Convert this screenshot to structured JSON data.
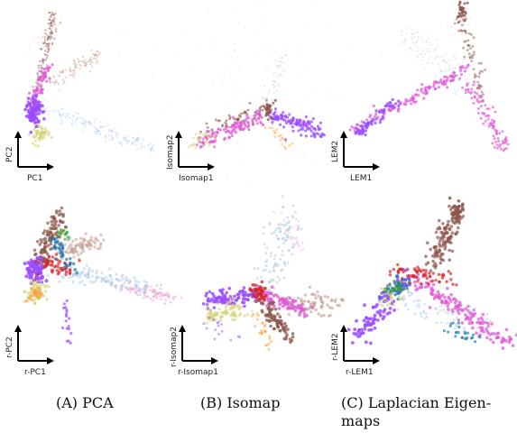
{
  "panels": [
    {
      "id": "pca",
      "x_label": "PC1",
      "y_label": "PC2"
    },
    {
      "id": "isomap",
      "x_label": "Isomap1",
      "y_label": "Isomap2"
    },
    {
      "id": "lem",
      "x_label": "LEM1",
      "y_label": "LEM2"
    },
    {
      "id": "r-pca",
      "x_label": "r-PC1",
      "y_label": "r-PC2"
    },
    {
      "id": "r-isomap",
      "x_label": "r-Isomap1",
      "y_label": "r-Isomap2"
    },
    {
      "id": "r-lem",
      "x_label": "r-LEM1",
      "y_label": "r-LEM2"
    }
  ],
  "captions": [
    {
      "letter": "(A)",
      "text": "PCA"
    },
    {
      "letter": "(B)",
      "text": "Isomap"
    },
    {
      "letter": "(C)",
      "text": "Laplacian Eigen-",
      "text2": "maps"
    }
  ],
  "colors": {
    "purple": "#9b4dff",
    "magenta": "#e05ad6",
    "pink": "#f2a6cf",
    "brown": "#8c564b",
    "tan": "#c49c94",
    "lightblue": "#aec7e8",
    "blue": "#1f77b4",
    "red": "#d62728",
    "olive": "#d4d47a",
    "orange": "#ff9f3a",
    "green": "#2ca02c"
  }
}
